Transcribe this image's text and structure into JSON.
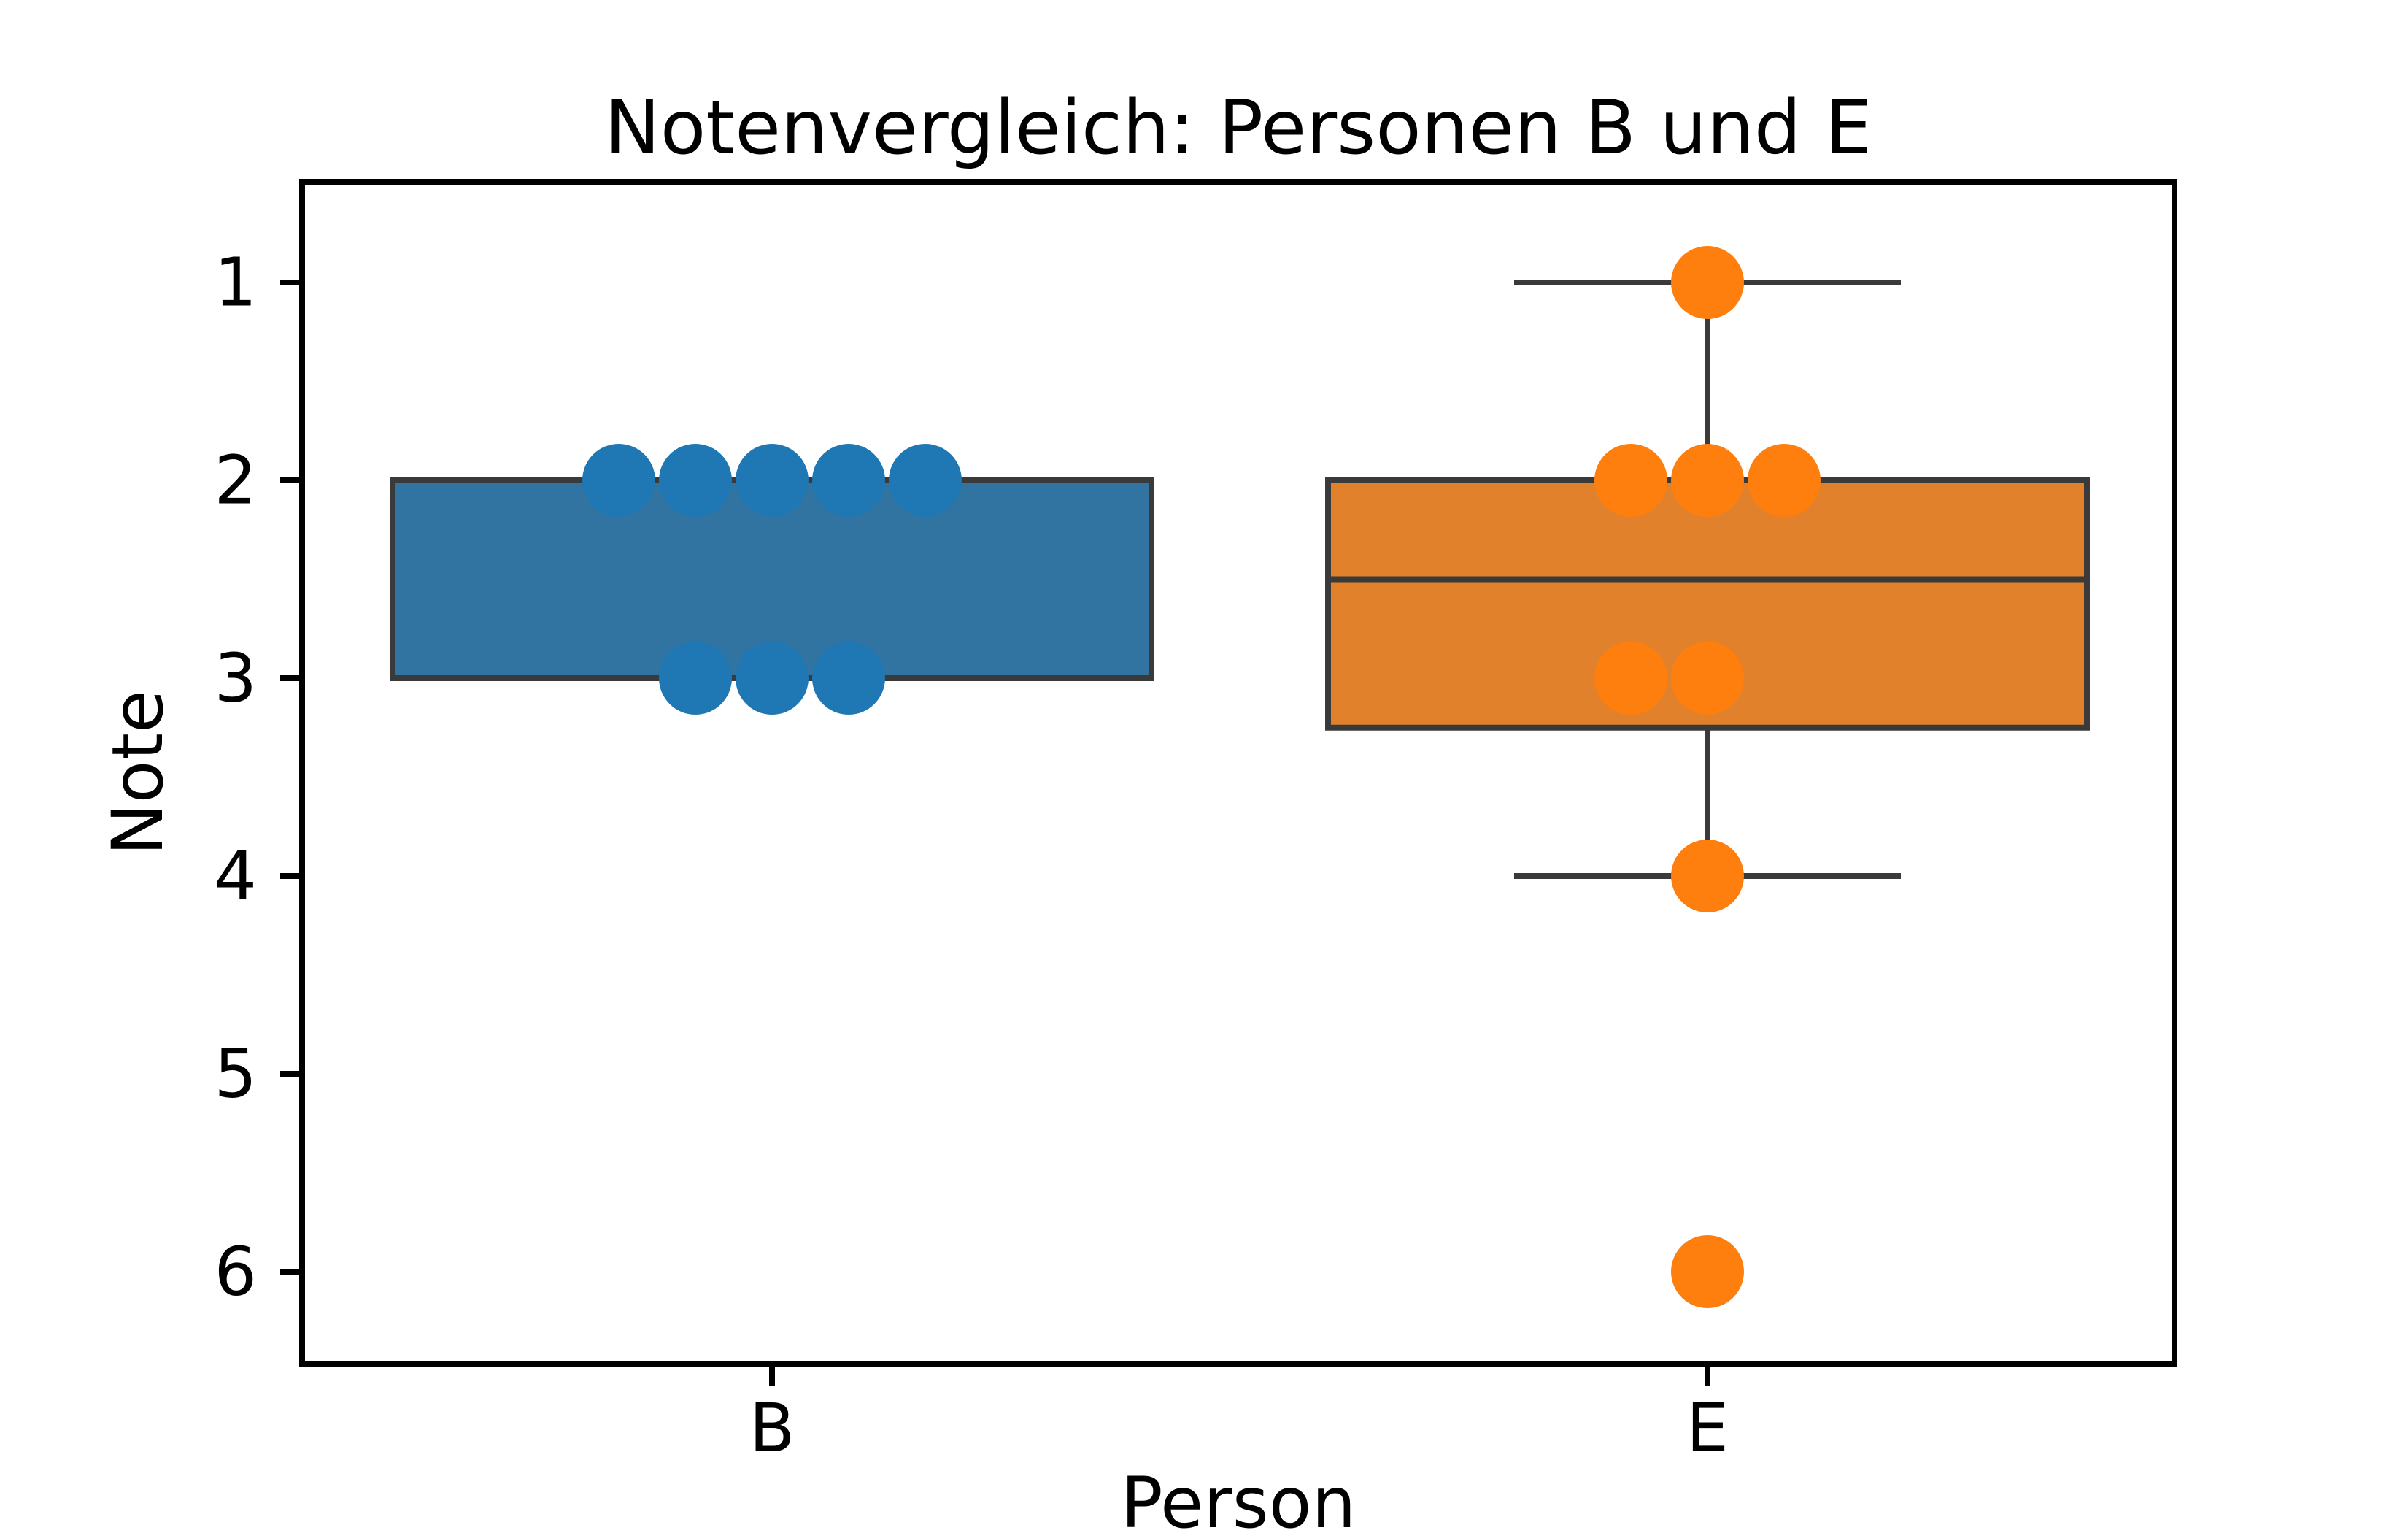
{
  "figure": {
    "background": "#ffffff"
  },
  "colors": {
    "axis_line": "#000000",
    "box_edge_line": "#3a3a3a",
    "text": "#000000",
    "series_b_box": "#3274a1",
    "series_b_dot": "#1f77b4",
    "series_e_box": "#e1812c",
    "series_e_dot": "#ff7f0e"
  },
  "chart_data": {
    "type": "boxplot",
    "title": "Notenvergleich: Personen B und E",
    "xlabel": "Person",
    "ylabel": "Note",
    "categories": [
      "B",
      "E"
    ],
    "y_ticks": [
      "1",
      "2",
      "3",
      "4",
      "5",
      "6"
    ],
    "y_axis_inverted": true,
    "ylim": [
      0.5,
      6.5
    ],
    "grid": false,
    "legend": false,
    "series": [
      {
        "name": "B",
        "values": [
          2,
          2,
          2,
          2,
          2,
          3,
          3,
          3
        ],
        "box": {
          "q1": 2,
          "median": 2,
          "q3": 3,
          "whisker_low": 2,
          "whisker_high": 3,
          "outliers": []
        },
        "box_color": "#3274a1",
        "dot_color": "#1f77b4",
        "points": [
          [
            2,
            -2
          ],
          [
            2,
            -1
          ],
          [
            2,
            0
          ],
          [
            2,
            1
          ],
          [
            2,
            2
          ],
          [
            3,
            -1
          ],
          [
            3,
            0
          ],
          [
            3,
            1
          ]
        ]
      },
      {
        "name": "E",
        "values": [
          1,
          2,
          2,
          2,
          3,
          3,
          4,
          6
        ],
        "box": {
          "q1": 2,
          "median": 2.5,
          "q3": 3.25,
          "whisker_low": 1,
          "whisker_high": 4,
          "outliers": [
            6
          ]
        },
        "box_color": "#e1812c",
        "dot_color": "#ff7f0e",
        "points": [
          [
            1,
            0
          ],
          [
            2,
            -1
          ],
          [
            2,
            0
          ],
          [
            2,
            1
          ],
          [
            3,
            -1
          ],
          [
            3,
            0
          ],
          [
            4,
            0
          ],
          [
            6,
            0
          ]
        ]
      }
    ]
  }
}
